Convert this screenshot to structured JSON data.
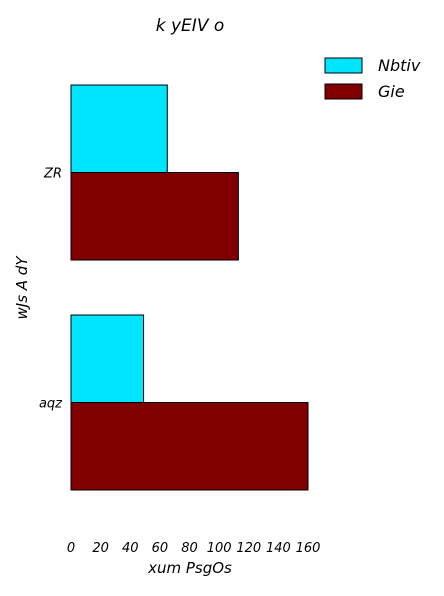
{
  "chart_data": {
    "type": "bar",
    "orientation": "horizontal",
    "title": "k yEIV o",
    "xlabel": "xum PsgOs",
    "ylabel": "wJs A dY",
    "categories": [
      "ZR",
      "aqz"
    ],
    "series": [
      {
        "name": "Nbtiv",
        "color": "#00e5ff",
        "values": [
          65,
          49
        ]
      },
      {
        "name": "Gie",
        "color": "#800000",
        "values": [
          113,
          160
        ]
      }
    ],
    "xlim": [
      0,
      160
    ],
    "xticks": [
      0,
      20,
      40,
      60,
      80,
      100,
      120,
      140,
      160
    ],
    "grid": false,
    "legend_position": "top-right"
  }
}
